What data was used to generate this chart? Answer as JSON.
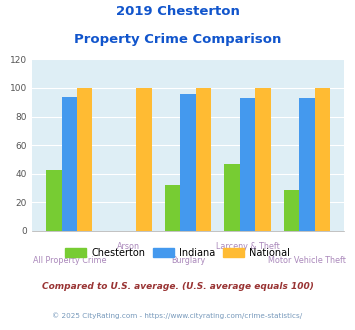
{
  "title_line1": "2019 Chesterton",
  "title_line2": "Property Crime Comparison",
  "categories": [
    "All Property Crime",
    "Arson",
    "Burglary",
    "Larceny & Theft",
    "Motor Vehicle Theft"
  ],
  "chesterton": [
    43,
    0,
    32,
    47,
    29
  ],
  "indiana": [
    94,
    0,
    96,
    93,
    93
  ],
  "national": [
    100,
    100,
    100,
    100,
    100
  ],
  "color_chesterton": "#77cc33",
  "color_indiana": "#4499ee",
  "color_national": "#ffbb33",
  "color_title": "#1155cc",
  "color_bg_chart": "#deeef5",
  "color_grid": "#ffffff",
  "color_xlabel_odd": "#aa88bb",
  "color_xlabel_even": "#aa88bb",
  "ylim": [
    0,
    120
  ],
  "yticks": [
    0,
    20,
    40,
    60,
    80,
    100,
    120
  ],
  "footnote1": "Compared to U.S. average. (U.S. average equals 100)",
  "footnote2": "© 2025 CityRating.com - https://www.cityrating.com/crime-statistics/",
  "footnote1_color": "#993333",
  "footnote2_color": "#7799bb"
}
